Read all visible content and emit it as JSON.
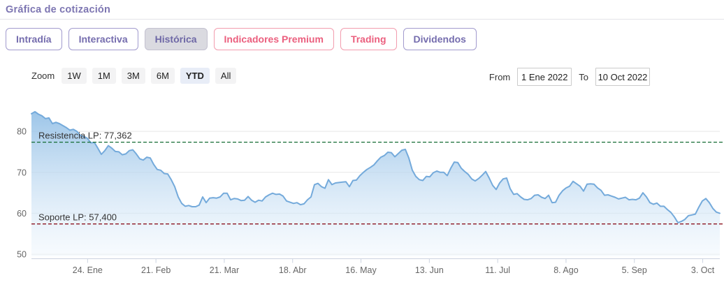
{
  "header": {
    "title": "Gráfica de cotización"
  },
  "tabs": [
    {
      "label": "Intradía",
      "theme": "purple",
      "active": false
    },
    {
      "label": "Interactiva",
      "theme": "purple",
      "active": false
    },
    {
      "label": "Histórica",
      "theme": "purple",
      "active": true
    },
    {
      "label": "Indicadores Premium",
      "theme": "pink",
      "active": false
    },
    {
      "label": "Trading",
      "theme": "pink",
      "active": false
    },
    {
      "label": "Dividendos",
      "theme": "purple",
      "active": false
    }
  ],
  "toolbar": {
    "zoom_label": "Zoom",
    "zoom_buttons": [
      "1W",
      "1M",
      "3M",
      "6M",
      "YTD",
      "All"
    ],
    "zoom_active": "YTD",
    "from_label": "From",
    "from_value": "1 Ene 2022",
    "to_label": "To",
    "to_value": "10 Oct 2022"
  },
  "chart_data": {
    "type": "area",
    "title": "",
    "xlabel": "",
    "ylabel": "",
    "x_start": "1 Ene 2022",
    "x_end": "10 Oct 2022",
    "x_ticks": [
      "24. Ene",
      "21. Feb",
      "21. Mar",
      "18. Abr",
      "16. May",
      "13. Jun",
      "11. Jul",
      "8. Ago",
      "5. Sep",
      "3. Oct"
    ],
    "x_tick_day_offsets": [
      23,
      51,
      79,
      107,
      135,
      163,
      191,
      219,
      247,
      275
    ],
    "total_days": 282,
    "y_ticks": [
      50,
      60,
      70,
      80
    ],
    "ylim": [
      49.5,
      86.5
    ],
    "grid": true,
    "values": [
      84.3,
      84.8,
      84.2,
      83.8,
      83.1,
      83.3,
      81.9,
      82.2,
      81.9,
      81.4,
      80.9,
      80.3,
      80.5,
      80.0,
      79.0,
      78.8,
      78.3,
      77.2,
      77.3,
      75.9,
      74.4,
      75.3,
      76.5,
      75.9,
      75.1,
      75.0,
      74.3,
      74.5,
      75.3,
      75.5,
      74.5,
      73.3,
      73.0,
      73.7,
      73.5,
      71.9,
      70.7,
      70.5,
      69.7,
      69.6,
      68.2,
      66.5,
      64.0,
      62.4,
      61.7,
      61.9,
      61.6,
      61.6,
      62.0,
      64.0,
      62.6,
      63.7,
      63.8,
      63.7,
      64.0,
      64.9,
      64.9,
      63.3,
      63.6,
      63.5,
      63.1,
      63.2,
      64.1,
      63.2,
      62.7,
      63.2,
      63.0,
      64.0,
      64.5,
      64.9,
      64.6,
      64.7,
      64.2,
      63.0,
      62.7,
      62.4,
      62.6,
      62.1,
      62.3,
      63.3,
      64.0,
      67.0,
      67.3,
      66.5,
      66.1,
      68.2,
      67.0,
      67.4,
      67.5,
      67.6,
      67.7,
      66.5,
      68.0,
      68.1,
      69.2,
      70.0,
      70.7,
      71.2,
      71.8,
      72.8,
      73.7,
      74.1,
      74.9,
      74.8,
      73.8,
      74.6,
      75.4,
      75.6,
      73.5,
      70.5,
      69.0,
      68.2,
      68.0,
      69.0,
      68.9,
      69.9,
      70.3,
      70.0,
      70.0,
      69.2,
      71.0,
      72.5,
      72.4,
      71.0,
      70.2,
      69.5,
      68.4,
      67.9,
      68.5,
      69.3,
      70.2,
      68.6,
      66.8,
      65.8,
      67.4,
      68.4,
      68.6,
      66.0,
      64.6,
      64.8,
      64.0,
      63.4,
      63.3,
      63.6,
      64.4,
      64.5,
      63.9,
      63.6,
      64.4,
      62.6,
      62.7,
      64.4,
      65.5,
      66.2,
      66.6,
      67.8,
      67.2,
      66.6,
      65.4,
      67.1,
      67.2,
      67.1,
      66.2,
      65.6,
      64.4,
      64.5,
      64.2,
      63.9,
      63.5,
      63.7,
      63.9,
      63.3,
      63.4,
      63.3,
      63.7,
      65.0,
      64.0,
      62.6,
      62.2,
      62.5,
      61.7,
      61.7,
      60.9,
      60.2,
      59.1,
      57.7,
      58.0,
      58.5,
      59.4,
      59.6,
      59.8,
      61.5,
      63.0,
      63.6,
      62.6,
      61.2,
      60.3,
      60.0
    ],
    "annotations": [
      {
        "label": "Resistencia LP: 77,362",
        "value": 77.362,
        "color": "#156d33",
        "style": "dashed"
      },
      {
        "label": "Soporte LP: 57,400",
        "value": 57.4,
        "color": "#8c1622",
        "style": "dashed"
      }
    ],
    "legend": "none",
    "line_color": "#74aadb",
    "fill_top": "#92bfe6",
    "fill_bottom": "#eef6fd",
    "grid_color": "#e7e7e7",
    "axis_color": "#ccd3e0",
    "axis_label_color": "#666666"
  }
}
